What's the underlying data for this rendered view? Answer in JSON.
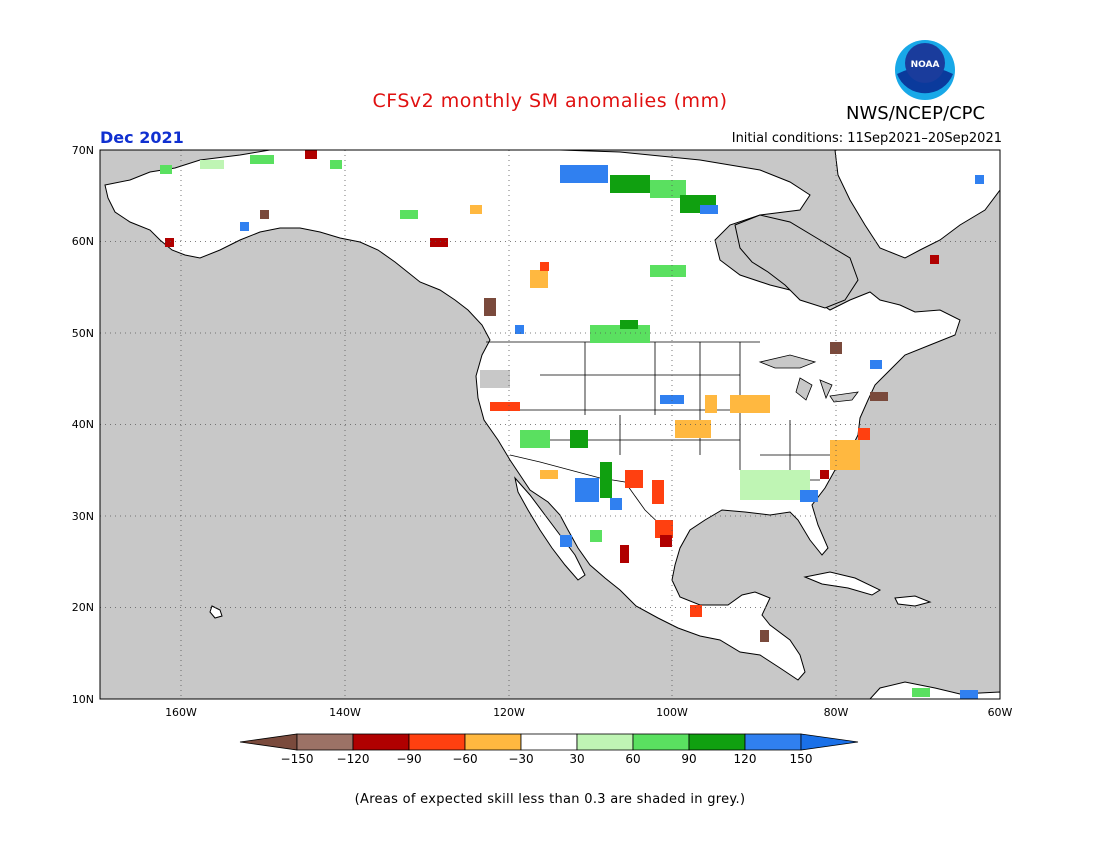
{
  "header": {
    "title": "CFSv2 monthly SM anomalies (mm)",
    "agency": "NWS/NCEP/CPC",
    "valid_month": "Dec 2021",
    "initial_conditions": "Initial conditions: 11Sep2021–20Sep2021",
    "logo_text": "NOAA"
  },
  "map": {
    "lon_range": [
      -172,
      -60
    ],
    "lat_range": [
      10,
      70
    ],
    "lat_labels": [
      "70N",
      "60N",
      "50N",
      "40N",
      "30N",
      "20N",
      "10N"
    ],
    "lon_labels": [
      "160W",
      "140W",
      "120W",
      "100W",
      "80W",
      "60W"
    ],
    "ocean_color": "#c8c8c8",
    "land_color": "#ffffff"
  },
  "colorbar": {
    "bins": [
      {
        "color": "#7a4a3c"
      },
      {
        "color": "#9c7266"
      },
      {
        "color": "#b00000"
      },
      {
        "color": "#ff4010"
      },
      {
        "color": "#ffb840"
      },
      {
        "color": "#ffffff"
      },
      {
        "color": "#bff5b4"
      },
      {
        "color": "#5ae060"
      },
      {
        "color": "#10a010"
      },
      {
        "color": "#3080f0"
      },
      {
        "color": "#1a70e8"
      }
    ],
    "labels": [
      "−150",
      "−120",
      "−90",
      "−60",
      "−30",
      "30",
      "60",
      "90",
      "120",
      "150"
    ]
  },
  "footnote": "(Areas of expected skill less than 0.3 are shaded in grey.)"
}
